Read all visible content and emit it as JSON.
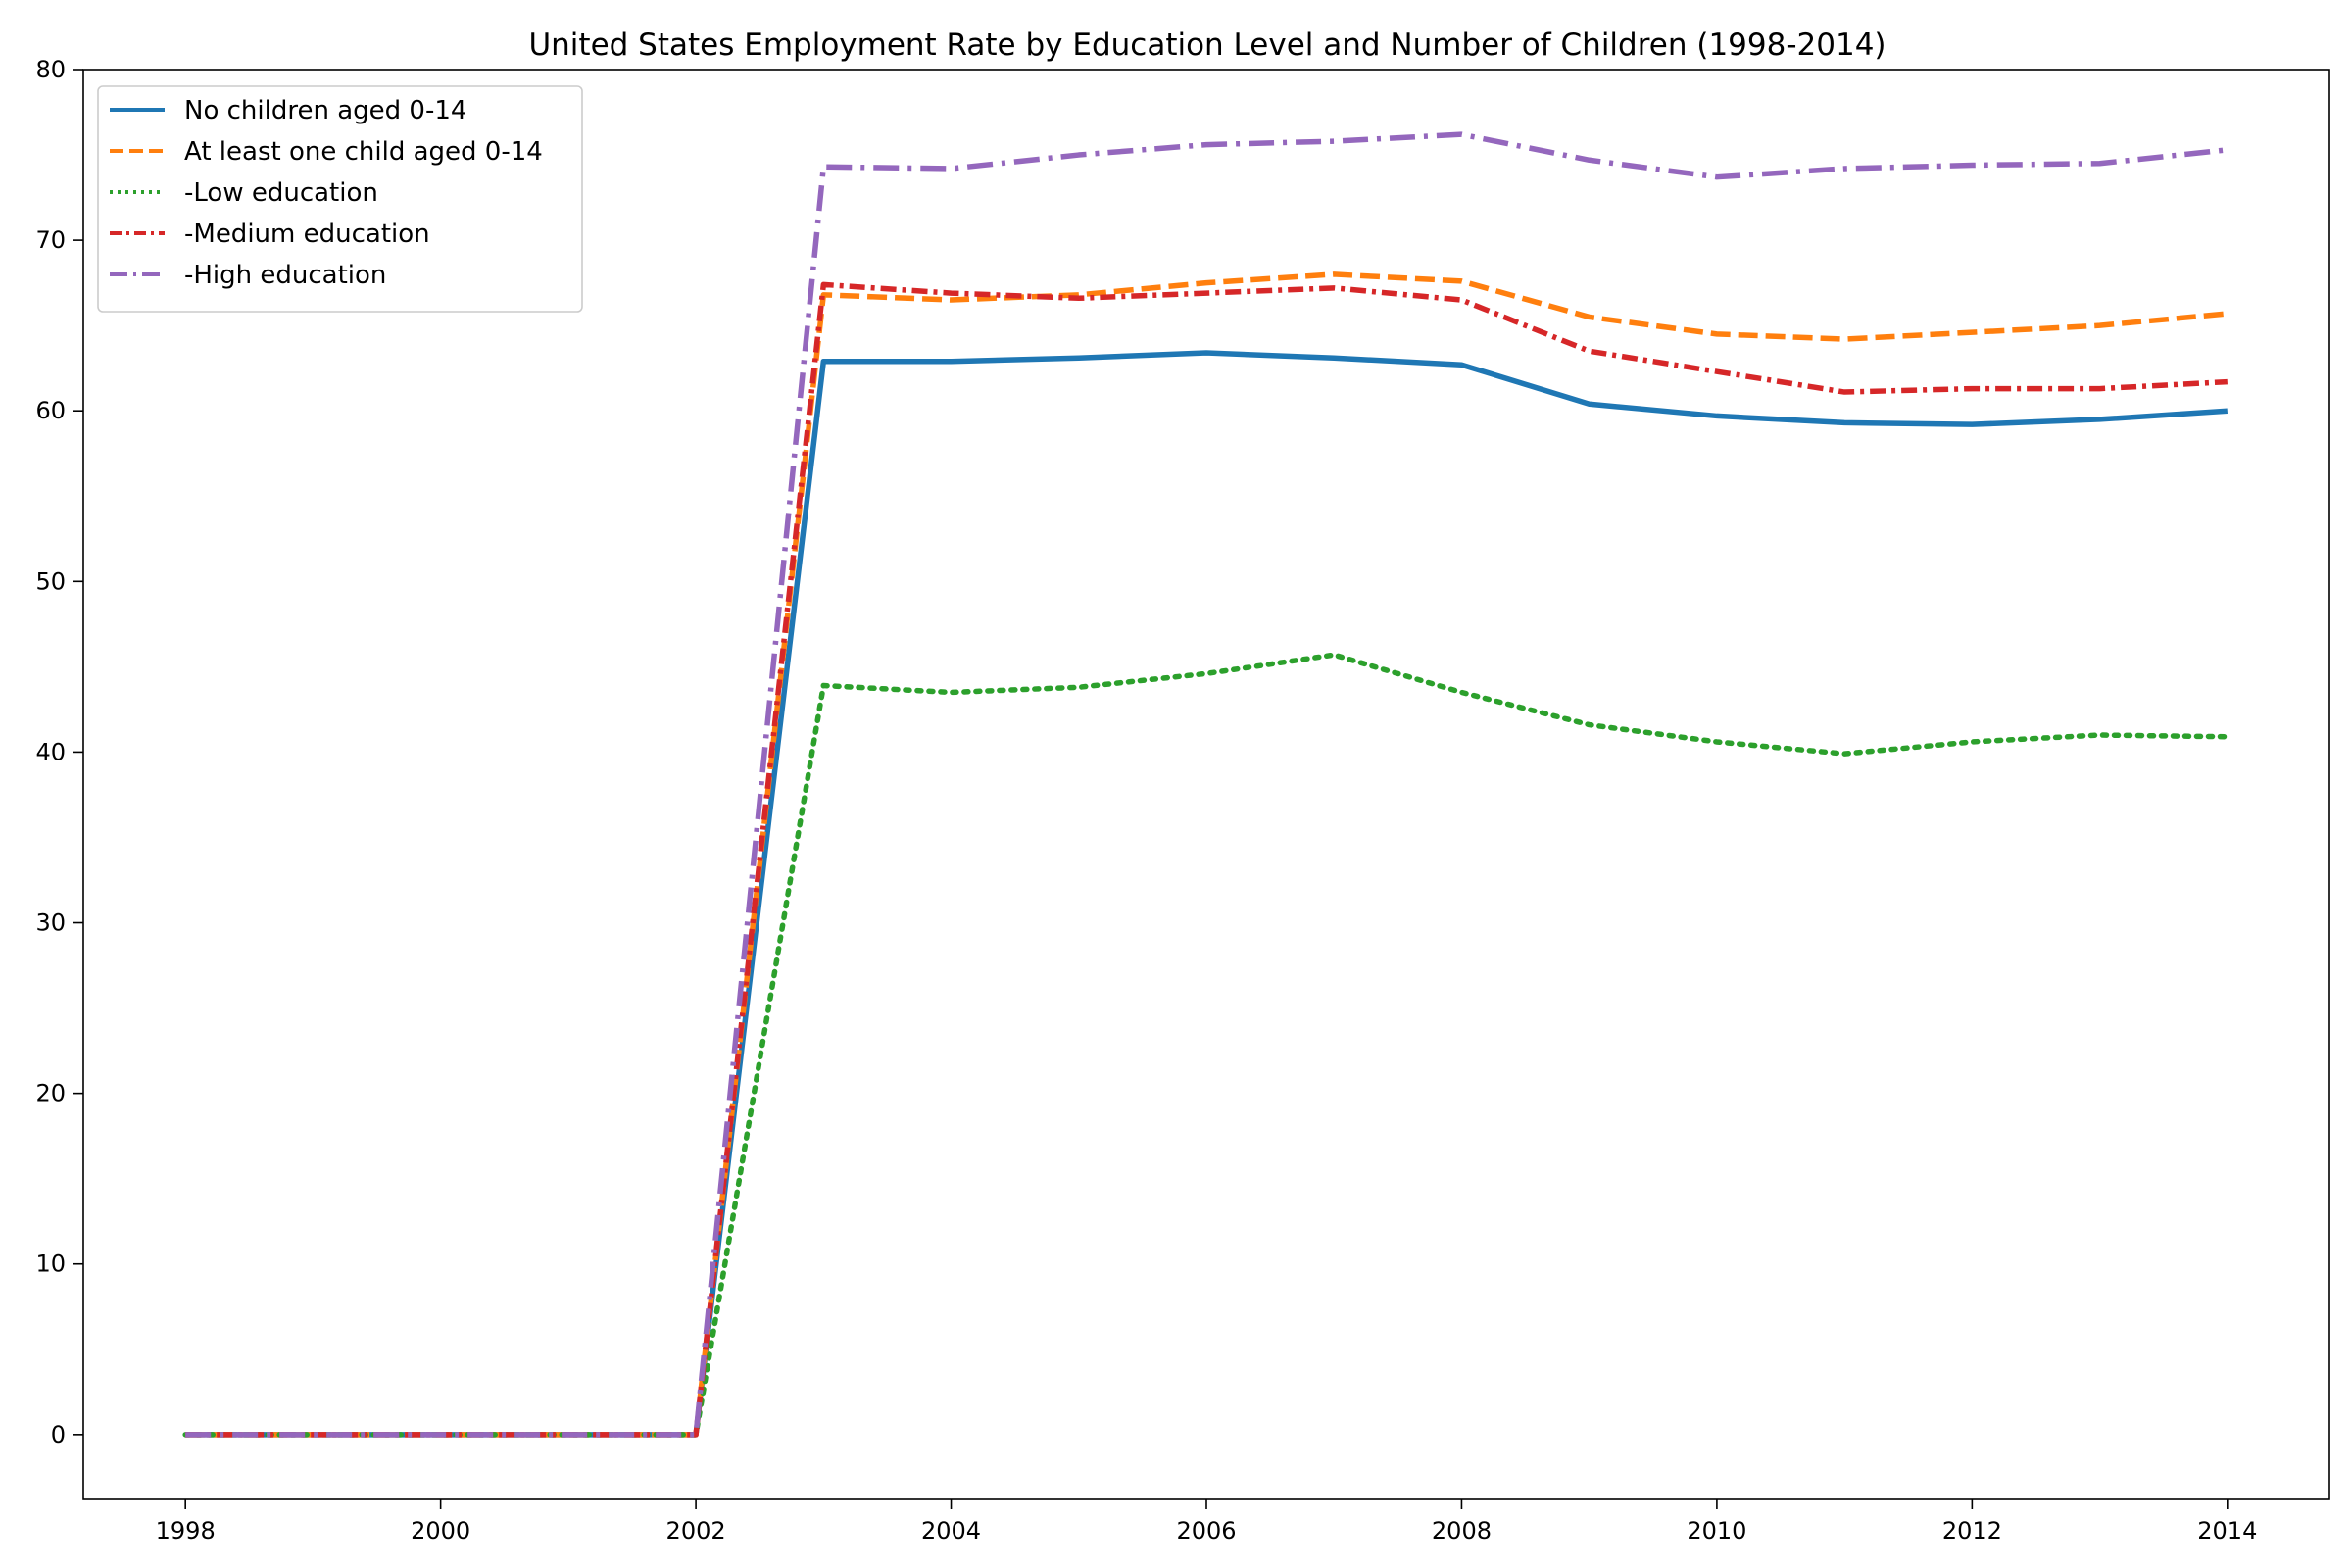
{
  "chart_data": {
    "type": "line",
    "title": "United States Employment Rate by Education Level and Number of Children (1998-2014)",
    "xlabel": "",
    "ylabel": "",
    "x": [
      1998,
      1999,
      2000,
      2001,
      2002,
      2003,
      2004,
      2005,
      2006,
      2007,
      2008,
      2009,
      2010,
      2011,
      2012,
      2013,
      2014
    ],
    "xlim": [
      1997.2,
      2014.8
    ],
    "ylim": [
      -3.8,
      80
    ],
    "xticks": [
      1998,
      2000,
      2002,
      2004,
      2006,
      2008,
      2010,
      2012,
      2014
    ],
    "yticks": [
      0,
      10,
      20,
      30,
      40,
      50,
      60,
      70,
      80
    ],
    "grid": false,
    "legend_position": "top-left",
    "series": [
      {
        "name": "No children aged 0-14",
        "color": "#1f77b4",
        "style": "solid",
        "values": [
          0,
          0,
          0,
          0,
          0,
          62.9,
          62.9,
          63.1,
          63.4,
          63.1,
          62.7,
          60.4,
          59.7,
          59.3,
          59.2,
          59.5,
          60.0
        ]
      },
      {
        "name": "At least one child aged 0-14",
        "color": "#ff7f0e",
        "style": "dashed",
        "values": [
          0,
          0,
          0,
          0,
          0,
          66.8,
          66.5,
          66.8,
          67.5,
          68.0,
          67.6,
          65.5,
          64.5,
          64.2,
          64.6,
          65.0,
          65.7
        ]
      },
      {
        "name": "-Low education",
        "color": "#2ca02c",
        "style": "dotted",
        "values": [
          0,
          0,
          0,
          0,
          0,
          43.9,
          43.5,
          43.8,
          44.6,
          45.7,
          43.5,
          41.6,
          40.6,
          39.9,
          40.6,
          41.0,
          40.9
        ]
      },
      {
        "name": "-Medium education",
        "color": "#d62728",
        "style": "dashdot",
        "values": [
          0,
          0,
          0,
          0,
          0,
          67.4,
          66.9,
          66.6,
          66.9,
          67.2,
          66.5,
          63.5,
          62.3,
          61.1,
          61.3,
          61.3,
          61.7
        ]
      },
      {
        "name": "-High education",
        "color": "#9467bd",
        "style": "dashdot-long",
        "values": [
          0,
          0,
          0,
          0,
          0,
          74.3,
          74.2,
          75.0,
          75.6,
          75.8,
          76.2,
          74.7,
          73.7,
          74.2,
          74.4,
          74.5,
          75.3
        ]
      }
    ]
  }
}
